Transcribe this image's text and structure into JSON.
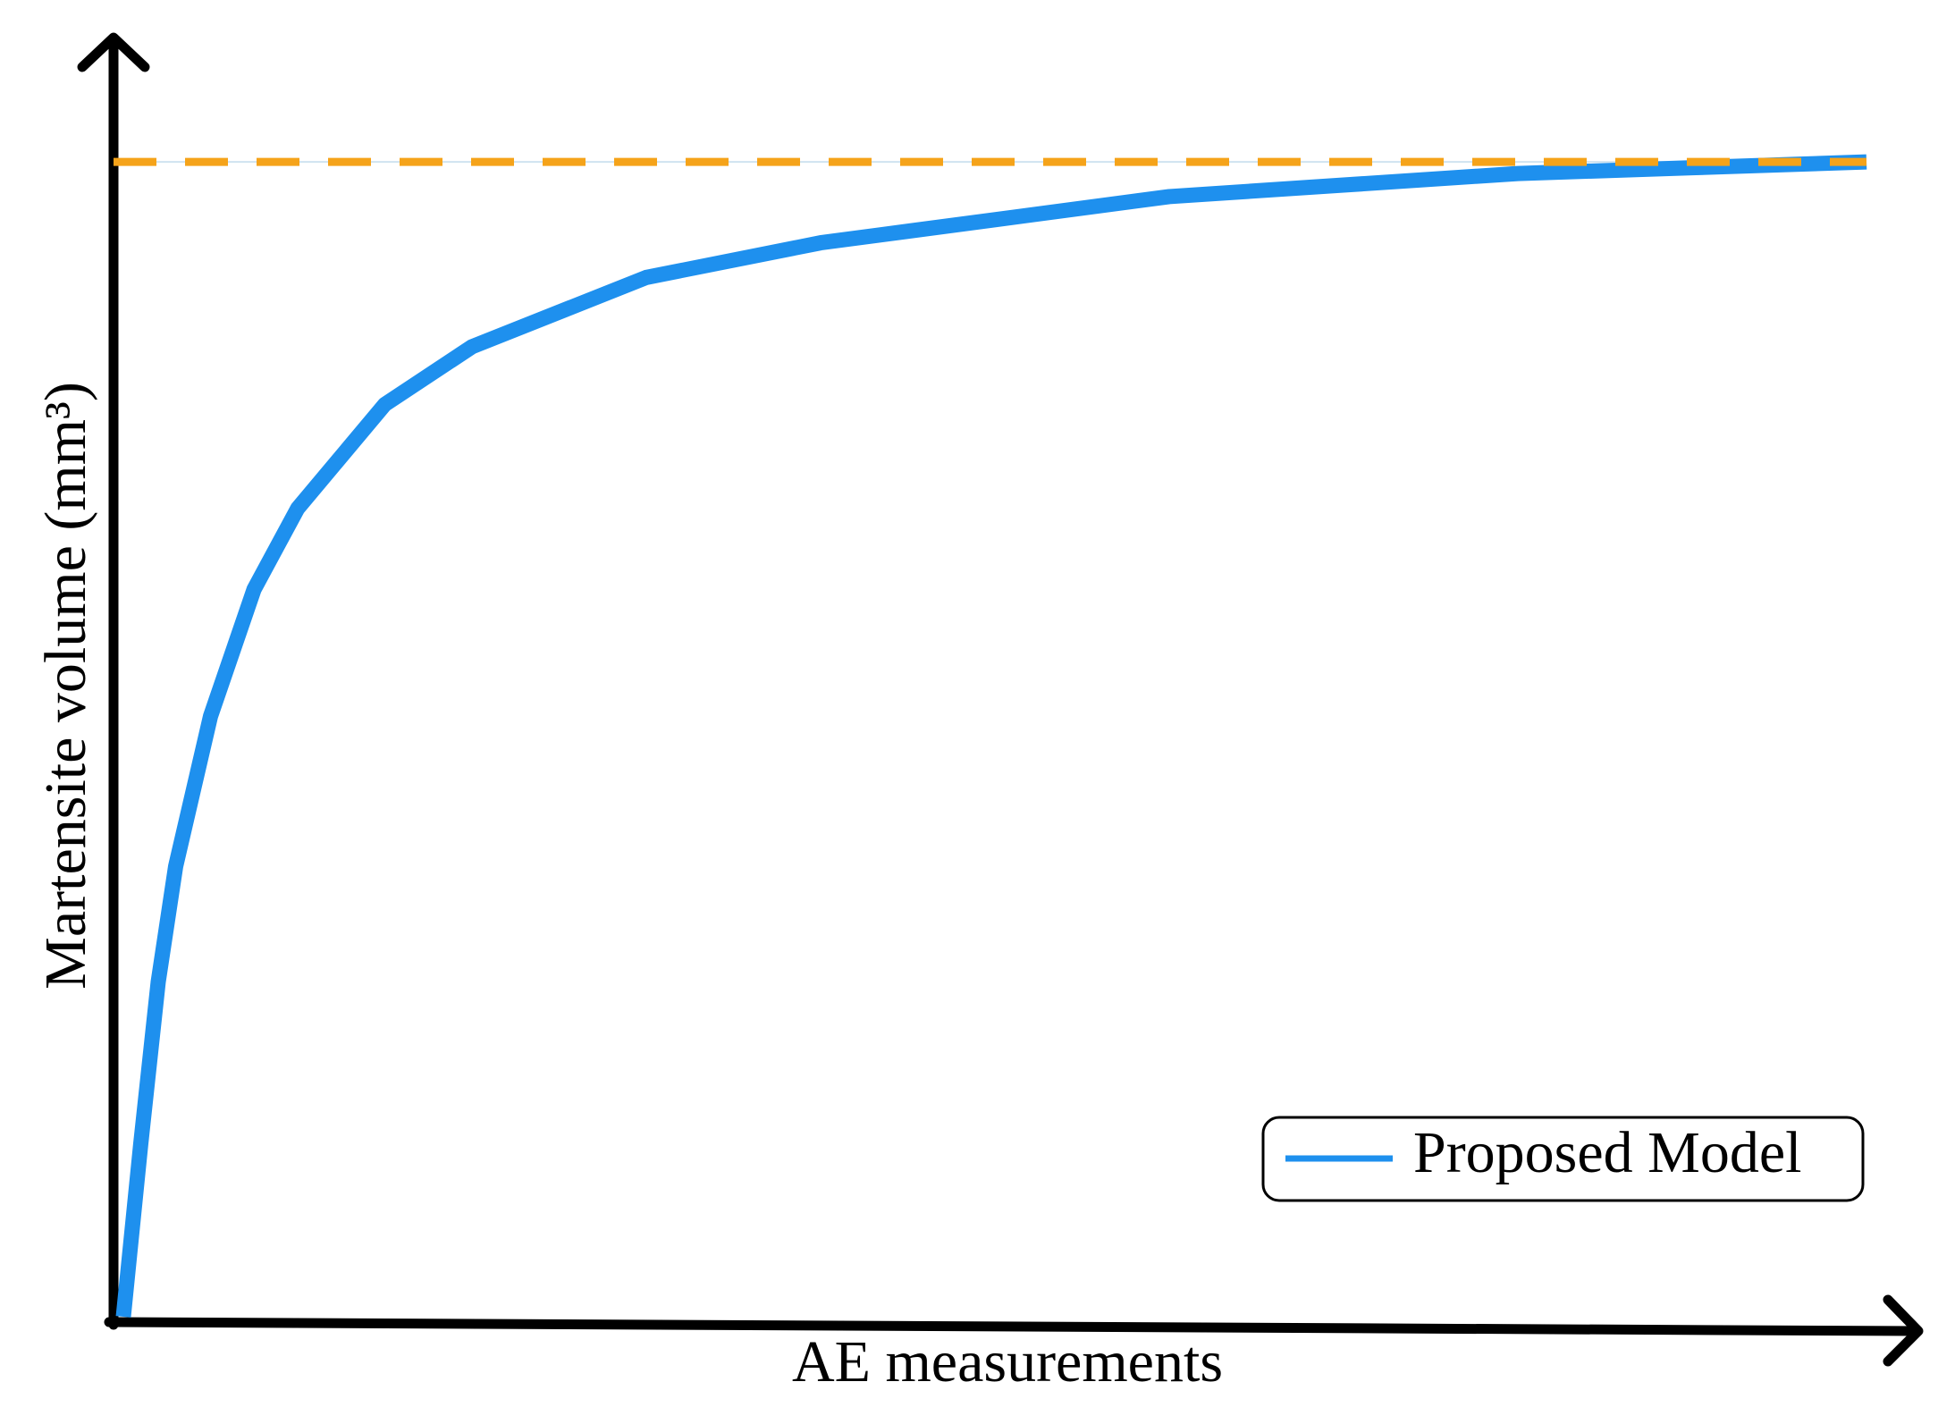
{
  "chart_data": {
    "type": "line",
    "x_label": "AE measurements",
    "y_label": "Martensite volume (mm³)",
    "x": [
      0,
      0.01,
      0.02,
      0.03,
      0.05,
      0.075,
      0.1,
      0.15,
      0.2,
      0.3,
      0.4,
      0.5,
      0.6,
      0.7,
      0.8,
      0.9,
      1.0
    ],
    "series": [
      {
        "name": "Proposed Model",
        "color": "#1e90ee",
        "values": [
          0,
          0.15,
          0.29,
          0.39,
          0.52,
          0.63,
          0.7,
          0.79,
          0.84,
          0.9,
          0.93,
          0.95,
          0.97,
          0.98,
          0.99,
          0.995,
          1.0
        ]
      }
    ],
    "reference_line": {
      "value": 1,
      "color": "#f5a31a",
      "style": "dashed"
    },
    "xlim": [
      0,
      1.04
    ],
    "ylim": [
      0,
      1.1
    ],
    "legend": "lower right"
  }
}
